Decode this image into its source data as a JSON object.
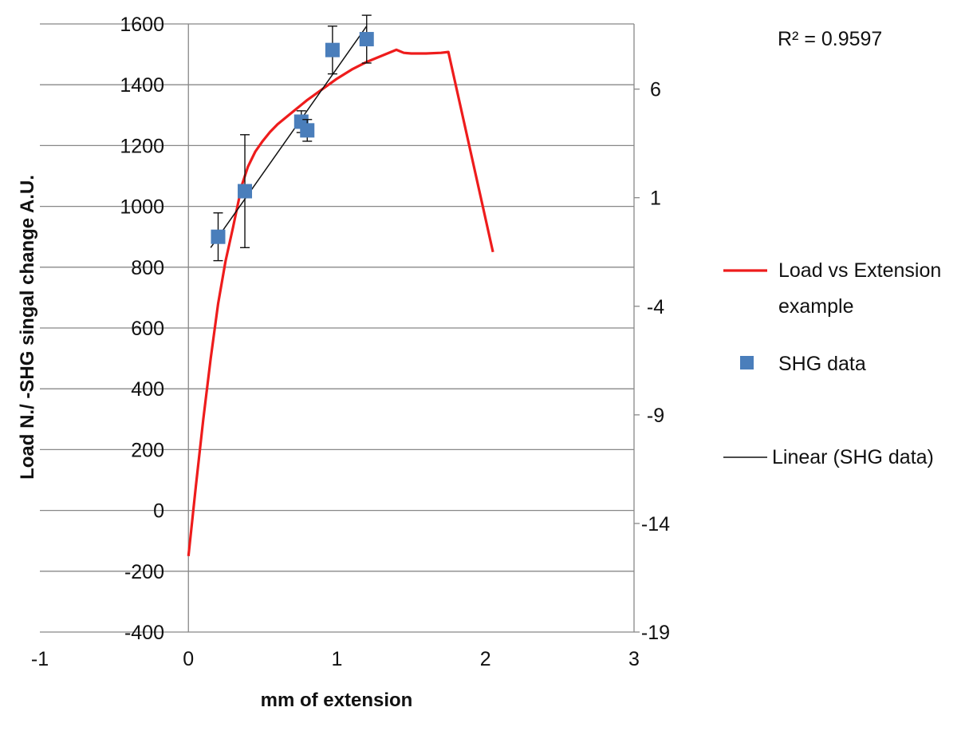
{
  "chart_data": {
    "type": "scatter",
    "title": "",
    "xlabel": "mm of extension",
    "ylabel": "Load N./ -SHG singal change A.U.",
    "xlim": [
      -1,
      3
    ],
    "ylim": [
      -400,
      1600
    ],
    "y2lim": [
      -19,
      9
    ],
    "x_ticks": [
      "-1",
      "0",
      "1",
      "2",
      "3"
    ],
    "y_ticks": [
      "-400",
      "-200",
      "0",
      "200",
      "400",
      "600",
      "800",
      "1000",
      "1200",
      "1400",
      "1600"
    ],
    "y2_ticks": [
      "-19",
      "-14",
      "-9",
      "-4",
      "1",
      "6"
    ],
    "grid": "horizontal",
    "legend_position": "right",
    "annotation": "R² = 0.9597",
    "colors": {
      "load": "#ee1c1c",
      "shg": "#4a7ebb",
      "linear": "#111111",
      "grid": "#888888"
    },
    "series": [
      {
        "name": "Load vs Extension example",
        "axis": "primary",
        "style": "line",
        "x": [
          0,
          0.05,
          0.1,
          0.15,
          0.2,
          0.25,
          0.3,
          0.33,
          0.36,
          0.4,
          0.45,
          0.5,
          0.55,
          0.6,
          0.7,
          0.8,
          0.9,
          1.0,
          1.1,
          1.2,
          1.3,
          1.4,
          1.45,
          1.5,
          1.6,
          1.7,
          1.75,
          2.05
        ],
        "y": [
          -150,
          80,
          300,
          500,
          680,
          820,
          930,
          1000,
          1070,
          1130,
          1180,
          1215,
          1245,
          1270,
          1310,
          1350,
          1385,
          1420,
          1450,
          1475,
          1495,
          1515,
          1505,
          1503,
          1503,
          1505,
          1508,
          850
        ]
      },
      {
        "name": "SHG data",
        "axis": "secondary",
        "style": "marker",
        "x": [
          0.2,
          0.38,
          0.76,
          0.8,
          0.97,
          1.2
        ],
        "y": [
          -0.8,
          1.3,
          4.5,
          4.1,
          7.8,
          8.3
        ],
        "error": [
          1.1,
          2.6,
          0.5,
          0.5,
          1.1,
          1.1
        ]
      },
      {
        "name": "Linear (SHG data)",
        "axis": "secondary",
        "style": "trendline",
        "x": [
          0.15,
          1.2
        ],
        "y": [
          -1.3,
          8.9
        ]
      }
    ]
  }
}
